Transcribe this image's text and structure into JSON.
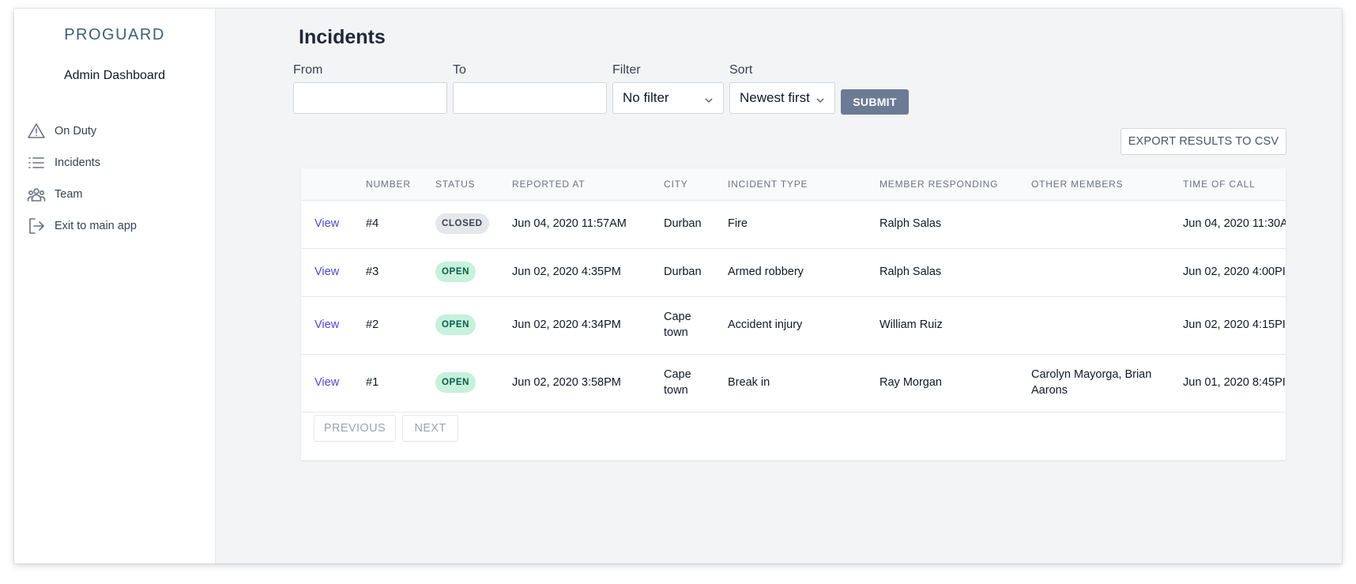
{
  "app": {
    "logo": "PROGUARD",
    "subtitle": "Admin Dashboard"
  },
  "sidebar": {
    "items": [
      {
        "label": "On Duty",
        "icon": "warning-triangle-icon"
      },
      {
        "label": "Incidents",
        "icon": "list-icon"
      },
      {
        "label": "Team",
        "icon": "team-icon"
      },
      {
        "label": "Exit to main app",
        "icon": "exit-icon"
      }
    ]
  },
  "page": {
    "title": "Incidents"
  },
  "filters": {
    "from_label": "From",
    "from_value": "",
    "to_label": "To",
    "to_value": "",
    "filter_label": "Filter",
    "filter_value": "No filter",
    "sort_label": "Sort",
    "sort_value": "Newest first",
    "submit_label": "SUBMIT"
  },
  "export_label": "EXPORT RESULTS TO CSV",
  "table": {
    "headers": [
      "NUMBER",
      "STATUS",
      "REPORTED AT",
      "CITY",
      "INCIDENT TYPE",
      "MEMBER RESPONDING",
      "OTHER MEMBERS",
      "TIME OF CALL"
    ],
    "view_label": "View",
    "rows": [
      {
        "number": "#4",
        "status": "CLOSED",
        "reported_at": "Jun 04, 2020 11:57AM",
        "city": "Durban",
        "incident_type": "Fire",
        "member_responding": "Ralph Salas",
        "other_members": "",
        "time_of_call": "Jun 04, 2020 11:30A"
      },
      {
        "number": "#3",
        "status": "OPEN",
        "reported_at": "Jun 02, 2020 4:35PM",
        "city": "Durban",
        "incident_type": "Armed robbery",
        "member_responding": "Ralph Salas",
        "other_members": "",
        "time_of_call": "Jun 02, 2020 4:00PI"
      },
      {
        "number": "#2",
        "status": "OPEN",
        "reported_at": "Jun 02, 2020 4:34PM",
        "city": "Cape town",
        "incident_type": "Accident injury",
        "member_responding": "William Ruiz",
        "other_members": "",
        "time_of_call": "Jun 02, 2020 4:15PI"
      },
      {
        "number": "#1",
        "status": "OPEN",
        "reported_at": "Jun 02, 2020 3:58PM",
        "city": "Cape town",
        "incident_type": "Break in",
        "member_responding": "Ray Morgan",
        "other_members": "Carolyn Mayorga, Brian Aarons",
        "time_of_call": "Jun 01, 2020 8:45PI"
      }
    ]
  },
  "pagination": {
    "previous_label": "PREVIOUS",
    "next_label": "NEXT"
  },
  "colors": {
    "accent": "#4f46e5",
    "logo": "#3b5f82",
    "submit_bg": "#6b7b94",
    "badge_open_bg": "#c6f1dd",
    "badge_closed_bg": "#e5e7eb"
  }
}
